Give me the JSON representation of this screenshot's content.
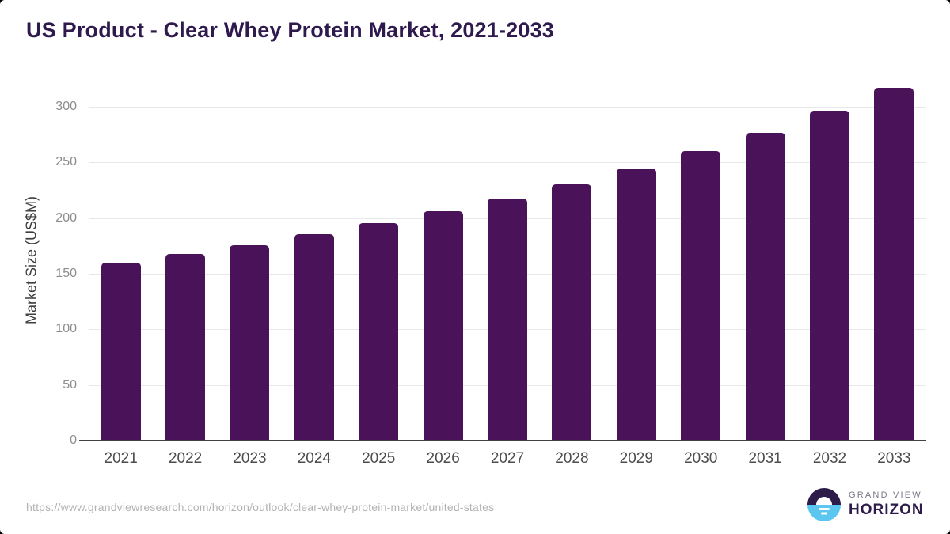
{
  "chart_data": {
    "type": "bar",
    "title": "US Product - Clear Whey Protein Market, 2021-2033",
    "categories": [
      "2021",
      "2022",
      "2023",
      "2024",
      "2025",
      "2026",
      "2027",
      "2028",
      "2029",
      "2030",
      "2031",
      "2032",
      "2033"
    ],
    "values": [
      160,
      167.5,
      176,
      185.5,
      195.5,
      206,
      217.5,
      230.5,
      244.5,
      260,
      277,
      296.5,
      317.5
    ],
    "xlabel": "",
    "ylabel": "Market Size (US$M)",
    "ylim": [
      0,
      325
    ],
    "yticks": [
      0,
      50,
      100,
      150,
      200,
      250,
      300
    ],
    "grid": true,
    "legend": "none",
    "bar_color": "#4a1259"
  },
  "footer": {
    "source_url": "https://www.grandviewresearch.com/horizon/outlook/clear-whey-protein-market/united-states",
    "logo": {
      "brand_top": "GRAND VIEW",
      "brand_bottom": "HORIZON"
    }
  },
  "colors": {
    "bar": "#4a1259",
    "title": "#2f1a4e",
    "axis_line": "#424242",
    "gridline": "#e8e8e8",
    "y_tick_label": "#8c8c8c",
    "x_tick_label": "#4d4d4d",
    "y_axis_title": "#3d3d3d",
    "source_url": "#b3b3b3",
    "logo_dark": "#2d1b4a",
    "logo_blue": "#5bc7f0",
    "logo_gray": "#7b7685"
  }
}
